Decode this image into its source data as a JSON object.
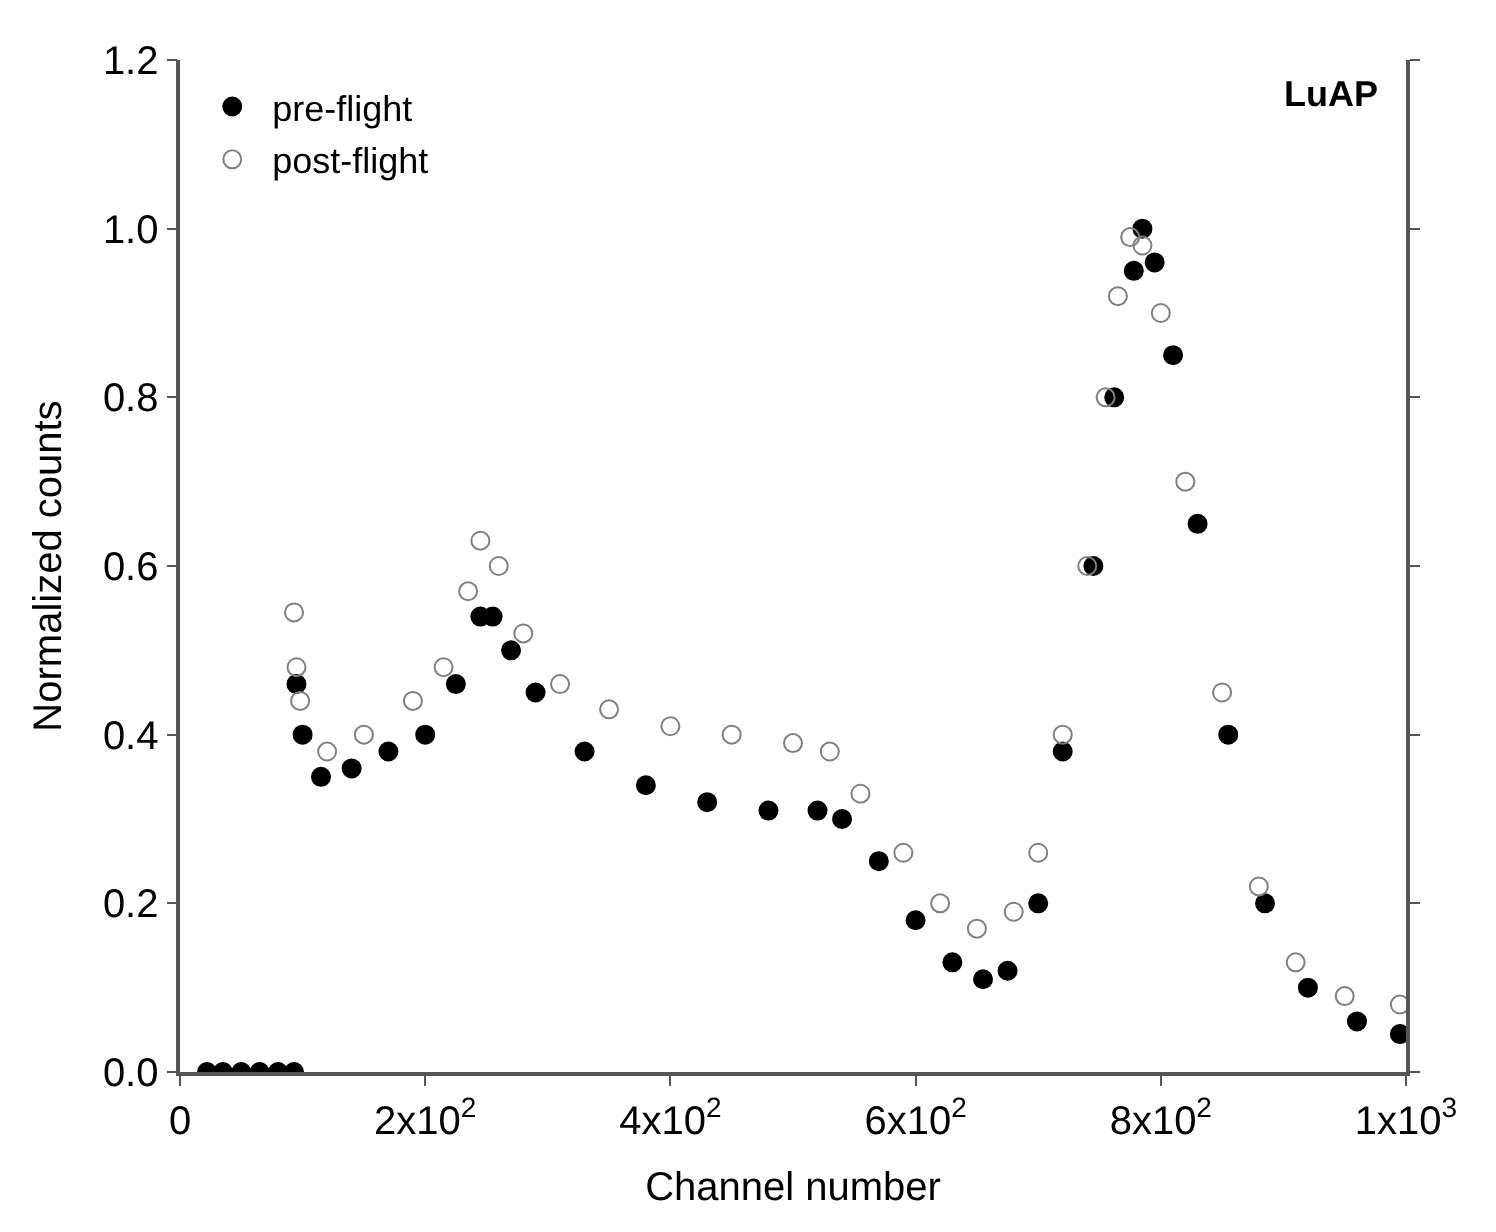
{
  "chart_data": {
    "type": "scatter",
    "xlabel": "Channel number",
    "ylabel": "Normalized counts",
    "annotations": [
      "LuAP"
    ],
    "xlim": [
      0,
      1000
    ],
    "xticks": [
      0,
      {
        "value": 200,
        "label": "2x10$^{2}$"
      },
      {
        "value": 400,
        "label": "4x10$^{2}$"
      },
      {
        "value": 600,
        "label": "6x10$^{2}$"
      },
      {
        "value": 800,
        "label": "8x10$^{2}$"
      },
      {
        "value": 1000,
        "label": "1x10$^{3}$"
      }
    ],
    "ylim": [
      0,
      1.2
    ],
    "yticks": [
      {
        "value": 0,
        "label": "0.0"
      },
      0.2,
      0.4,
      0.6,
      0.8,
      {
        "value": 1.0,
        "label": "1.0"
      },
      1.2
    ],
    "legend": "top left",
    "series": [
      {
        "name": "pre-flight",
        "color": "#000000",
        "marker": "circle",
        "x": [
          22,
          35,
          50,
          65,
          80,
          93,
          95,
          100,
          115,
          140,
          170,
          200,
          225,
          245,
          255,
          270,
          290,
          330,
          380,
          430,
          480,
          520,
          540,
          570,
          600,
          630,
          655,
          675,
          700,
          720,
          745,
          762,
          778,
          785,
          795,
          810,
          830,
          855,
          885,
          920,
          960,
          995
        ],
        "values": [
          0,
          0,
          0,
          0,
          0,
          0,
          0.46,
          0.4,
          0.35,
          0.36,
          0.38,
          0.4,
          0.46,
          0.54,
          0.54,
          0.5,
          0.45,
          0.38,
          0.34,
          0.32,
          0.31,
          0.31,
          0.3,
          0.25,
          0.18,
          0.13,
          0.11,
          0.12,
          0.2,
          0.38,
          0.6,
          0.8,
          0.95,
          1.0,
          0.96,
          0.85,
          0.65,
          0.4,
          0.2,
          0.1,
          0.06,
          0.045
        ]
      },
      {
        "name": "post-flight",
        "color": "#808080",
        "marker": "circle-open",
        "x": [
          93,
          95,
          98,
          120,
          150,
          190,
          215,
          235,
          245,
          260,
          280,
          310,
          350,
          400,
          450,
          500,
          530,
          555,
          590,
          620,
          650,
          680,
          700,
          720,
          740,
          755,
          765,
          775,
          785,
          800,
          820,
          850,
          880,
          910,
          950,
          995
        ],
        "values": [
          0.545,
          0.48,
          0.44,
          0.38,
          0.4,
          0.44,
          0.48,
          0.57,
          0.63,
          0.6,
          0.52,
          0.46,
          0.43,
          0.41,
          0.4,
          0.39,
          0.38,
          0.33,
          0.26,
          0.2,
          0.17,
          0.19,
          0.26,
          0.4,
          0.6,
          0.8,
          0.92,
          0.99,
          0.98,
          0.9,
          0.7,
          0.45,
          0.22,
          0.13,
          0.09,
          0.08
        ]
      }
    ]
  }
}
